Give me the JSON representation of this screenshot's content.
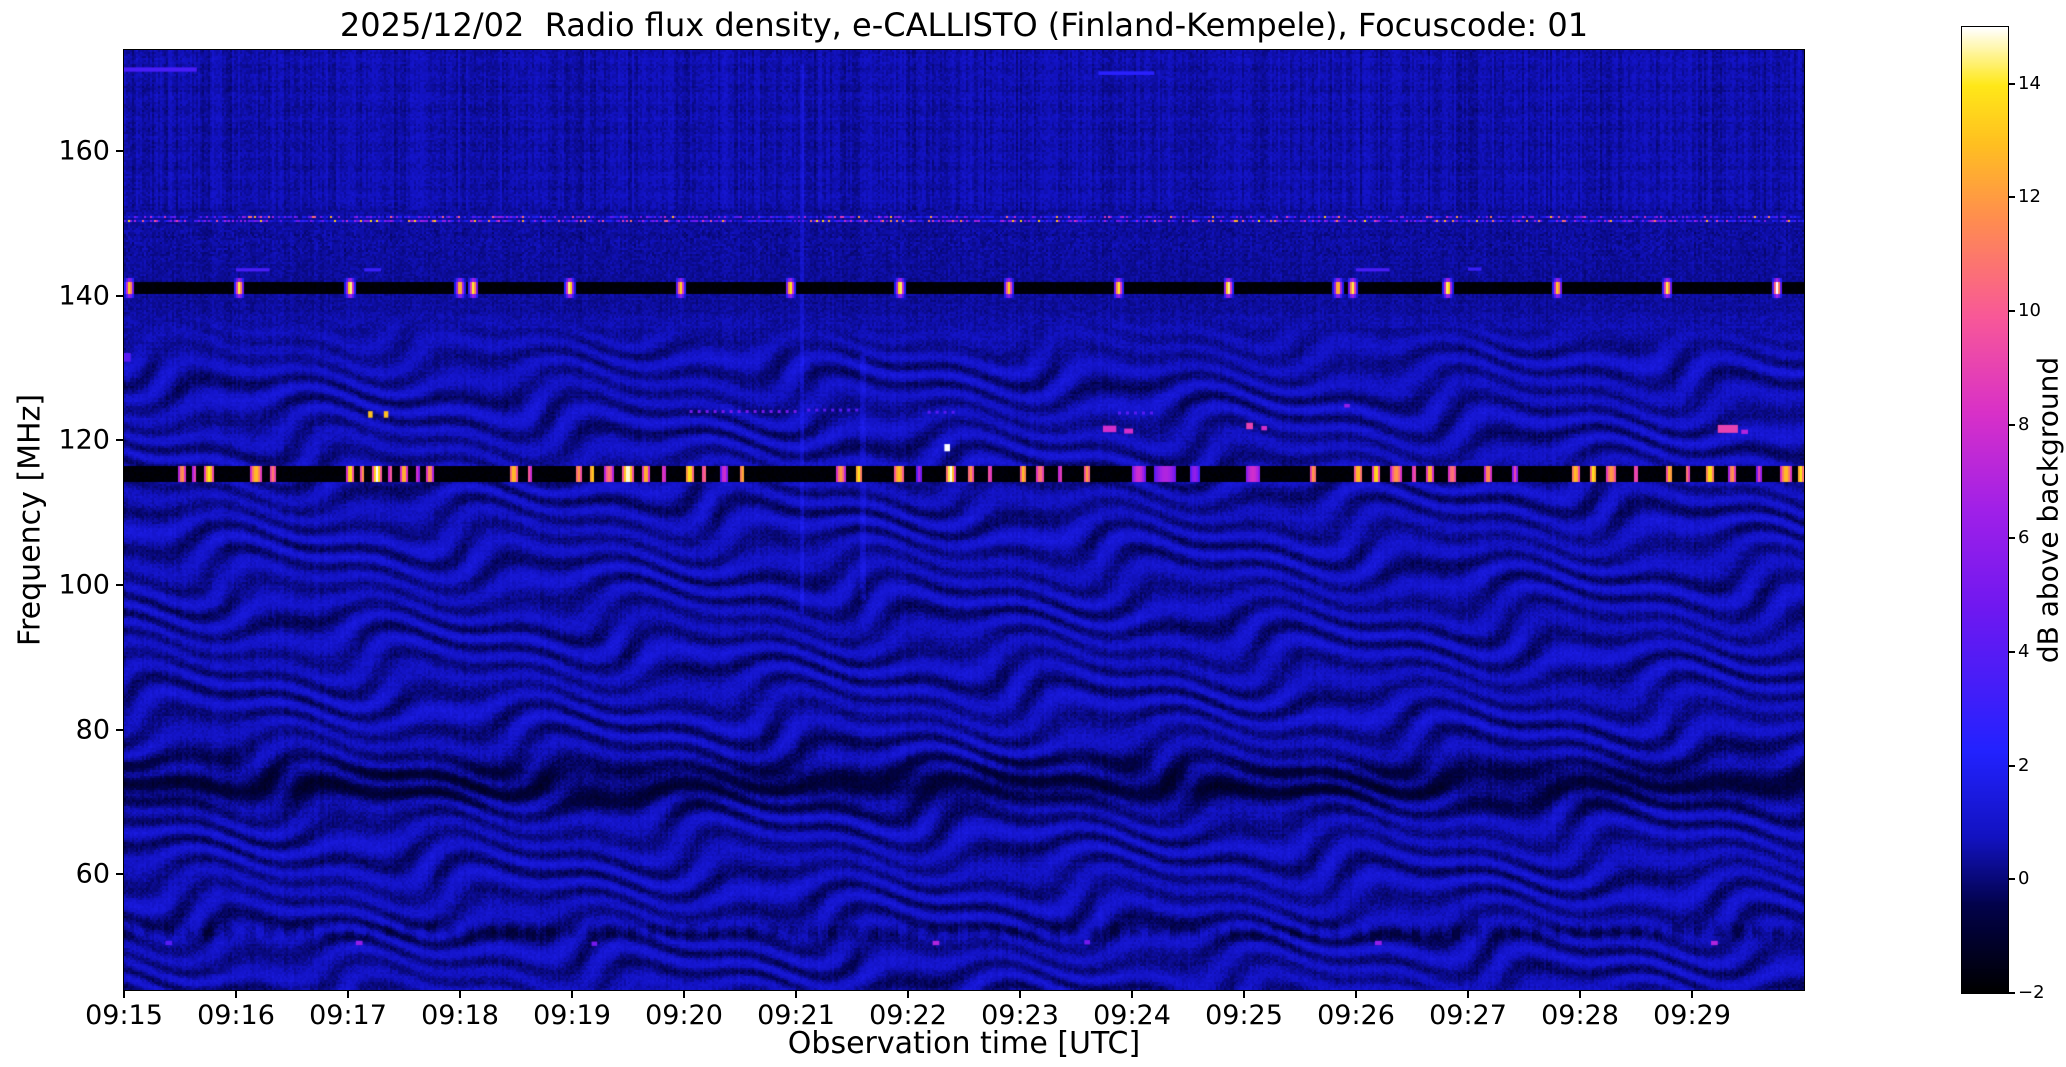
{
  "chart_data": {
    "type": "heatmap",
    "title": "2025/12/02  Radio flux density, e-CALLISTO (Finland-Kempele), Focuscode: 01",
    "xlabel": "Observation time [UTC]",
    "ylabel": "Frequency [MHz]",
    "x_start": "09:15",
    "x_end": "09:30",
    "x_minutes": 15,
    "x_ticks": [
      "09:15",
      "09:16",
      "09:17",
      "09:18",
      "09:19",
      "09:20",
      "09:21",
      "09:22",
      "09:23",
      "09:24",
      "09:25",
      "09:26",
      "09:27",
      "09:28",
      "09:29"
    ],
    "y_ticks": [
      160,
      140,
      120,
      100,
      80,
      60
    ],
    "freq_range": [
      44,
      174
    ],
    "colorbar": {
      "label": "dB above background",
      "ticks": [
        -2,
        0,
        2,
        4,
        6,
        8,
        10,
        12,
        14
      ],
      "range": [
        -2,
        15
      ]
    },
    "colormap": {
      "name": "gnuplot2-like",
      "stops": [
        [
          0.0,
          "#000000"
        ],
        [
          0.09,
          "#02024a"
        ],
        [
          0.16,
          "#1212c0"
        ],
        [
          0.25,
          "#2222ff"
        ],
        [
          0.4,
          "#7018f0"
        ],
        [
          0.5,
          "#a020e8"
        ],
        [
          0.6,
          "#d830c8"
        ],
        [
          0.7,
          "#f85898"
        ],
        [
          0.8,
          "#ff8c50"
        ],
        [
          0.88,
          "#ffc020"
        ],
        [
          0.94,
          "#ffe818"
        ],
        [
          1.0,
          "#ffffff"
        ]
      ]
    },
    "background_level_db": 0.5,
    "features": {
      "beacon_line": {
        "freq_mhz": 141,
        "width_mhz": 1.5,
        "level_db": -2,
        "pulse_peak_db": 14.5,
        "pulse_times_min": [
          0.05,
          1.03,
          2.02,
          3.0,
          3.12,
          3.98,
          4.97,
          5.95,
          6.93,
          7.9,
          8.88,
          9.86,
          10.84,
          10.97,
          11.82,
          12.8,
          13.78,
          14.76
        ]
      },
      "airband_line": {
        "freq_mhz": 115.3,
        "width_mhz": 2.2,
        "level_db": -2,
        "blips": [
          [
            0.52,
            0.03,
            12
          ],
          [
            0.63,
            0.02,
            9
          ],
          [
            0.76,
            0.04,
            14
          ],
          [
            1.18,
            0.05,
            13
          ],
          [
            1.33,
            0.03,
            11
          ],
          [
            2.02,
            0.03,
            14
          ],
          [
            2.13,
            0.02,
            12
          ],
          [
            2.26,
            0.04,
            15
          ],
          [
            2.38,
            0.02,
            10
          ],
          [
            2.5,
            0.03,
            13
          ],
          [
            2.62,
            0.02,
            8
          ],
          [
            2.73,
            0.03,
            12
          ],
          [
            3.48,
            0.04,
            13
          ],
          [
            3.62,
            0.02,
            10
          ],
          [
            4.06,
            0.03,
            12
          ],
          [
            4.18,
            0.02,
            14
          ],
          [
            4.33,
            0.04,
            11
          ],
          [
            4.5,
            0.05,
            15
          ],
          [
            4.66,
            0.03,
            13
          ],
          [
            4.82,
            0.02,
            9
          ],
          [
            5.05,
            0.04,
            14
          ],
          [
            5.18,
            0.02,
            11
          ],
          [
            5.36,
            0.03,
            8
          ],
          [
            5.52,
            0.02,
            13
          ],
          [
            6.4,
            0.04,
            12
          ],
          [
            6.56,
            0.03,
            14
          ],
          [
            6.92,
            0.05,
            13
          ],
          [
            7.1,
            0.02,
            7
          ],
          [
            7.38,
            0.04,
            15
          ],
          [
            7.56,
            0.03,
            12
          ],
          [
            7.73,
            0.02,
            10
          ],
          [
            8.03,
            0.03,
            13
          ],
          [
            8.18,
            0.04,
            11
          ],
          [
            8.36,
            0.02,
            9
          ],
          [
            8.6,
            0.03,
            12
          ],
          [
            9.06,
            0.06,
            8
          ],
          [
            9.3,
            0.1,
            7
          ],
          [
            9.56,
            0.04,
            6
          ],
          [
            10.08,
            0.07,
            8
          ],
          [
            10.62,
            0.03,
            12
          ],
          [
            11.02,
            0.04,
            13
          ],
          [
            11.18,
            0.03,
            14
          ],
          [
            11.36,
            0.05,
            12
          ],
          [
            11.52,
            0.02,
            10
          ],
          [
            11.66,
            0.03,
            13
          ],
          [
            11.86,
            0.04,
            11
          ],
          [
            12.18,
            0.03,
            12
          ],
          [
            12.42,
            0.02,
            9
          ],
          [
            12.96,
            0.04,
            13
          ],
          [
            13.12,
            0.03,
            14
          ],
          [
            13.28,
            0.05,
            12
          ],
          [
            13.5,
            0.02,
            10
          ],
          [
            13.8,
            0.03,
            13
          ],
          [
            13.96,
            0.02,
            11
          ],
          [
            14.16,
            0.04,
            14
          ],
          [
            14.36,
            0.03,
            12
          ],
          [
            14.6,
            0.02,
            9
          ],
          [
            14.84,
            0.05,
            13
          ],
          [
            14.97,
            0.03,
            14
          ]
        ]
      },
      "speckle_line": {
        "freq_mhz": 150.5,
        "width_mhz": 0.9
      },
      "events": [
        {
          "t": 0.03,
          "f": 131.5,
          "w": 0.06,
          "h": 1.2,
          "v": 4
        },
        {
          "t": 2.2,
          "f": 123.6,
          "w": 0.04,
          "h": 0.9,
          "v": 13
        },
        {
          "t": 2.34,
          "f": 123.6,
          "w": 0.04,
          "h": 0.9,
          "v": 13
        },
        {
          "t": 5.55,
          "f": 124.0,
          "w": 1.0,
          "h": 0.4,
          "v": 5,
          "type": "dots"
        },
        {
          "t": 6.35,
          "f": 124.2,
          "w": 0.5,
          "h": 0.4,
          "v": 4,
          "type": "dots"
        },
        {
          "t": 7.3,
          "f": 123.9,
          "w": 0.25,
          "h": 0.4,
          "v": 4,
          "type": "dots"
        },
        {
          "t": 7.35,
          "f": 119.0,
          "w": 0.05,
          "h": 1.0,
          "v": 15
        },
        {
          "t": 8.8,
          "f": 121.6,
          "w": 0.12,
          "h": 0.9,
          "v": 8
        },
        {
          "t": 8.97,
          "f": 121.3,
          "w": 0.08,
          "h": 0.7,
          "v": 8
        },
        {
          "t": 9.05,
          "f": 123.8,
          "w": 0.35,
          "h": 0.4,
          "v": 4,
          "type": "dots"
        },
        {
          "t": 10.05,
          "f": 122.0,
          "w": 0.06,
          "h": 0.9,
          "v": 9
        },
        {
          "t": 10.18,
          "f": 121.7,
          "w": 0.05,
          "h": 0.6,
          "v": 8
        },
        {
          "t": 10.92,
          "f": 124.8,
          "w": 0.05,
          "h": 0.5,
          "v": 6
        },
        {
          "t": 14.32,
          "f": 121.6,
          "w": 0.18,
          "h": 1.1,
          "v": 9
        },
        {
          "t": 14.47,
          "f": 121.2,
          "w": 0.06,
          "h": 0.6,
          "v": 7
        },
        {
          "t": 1.15,
          "f": 143.6,
          "w": 0.3,
          "h": 0.45,
          "v": 3.5
        },
        {
          "t": 2.22,
          "f": 143.6,
          "w": 0.15,
          "h": 0.45,
          "v": 3
        },
        {
          "t": 11.15,
          "f": 143.6,
          "w": 0.3,
          "h": 0.45,
          "v": 3.5
        },
        {
          "t": 12.06,
          "f": 143.7,
          "w": 0.12,
          "h": 0.45,
          "v": 3
        },
        {
          "t": 0.3,
          "f": 171.3,
          "w": 0.7,
          "h": 0.6,
          "v": 3.5
        },
        {
          "t": 8.95,
          "f": 170.8,
          "w": 0.5,
          "h": 0.5,
          "v": 2.5
        },
        {
          "t": 0.4,
          "f": 50.5,
          "w": 0.06,
          "h": 0.6,
          "v": 4
        },
        {
          "t": 2.1,
          "f": 50.5,
          "w": 0.06,
          "h": 0.6,
          "v": 6
        },
        {
          "t": 4.2,
          "f": 50.4,
          "w": 0.05,
          "h": 0.6,
          "v": 5
        },
        {
          "t": 7.25,
          "f": 50.5,
          "w": 0.06,
          "h": 0.6,
          "v": 7
        },
        {
          "t": 8.6,
          "f": 50.6,
          "w": 0.05,
          "h": 0.6,
          "v": 5
        },
        {
          "t": 11.2,
          "f": 50.5,
          "w": 0.06,
          "h": 0.6,
          "v": 6
        },
        {
          "t": 14.2,
          "f": 50.5,
          "w": 0.06,
          "h": 0.6,
          "v": 7
        }
      ],
      "vertical_streaks": [
        {
          "t_min": 6.05,
          "f0": 96,
          "f1": 172,
          "dv_db": 0.7
        },
        {
          "t_min": 6.6,
          "f0": 98,
          "f1": 132,
          "dv_db": 0.5
        }
      ],
      "ripple": {
        "wavelength_mhz": 3.55,
        "max_freq_mhz": 137.5,
        "amplitude_db": 0.55,
        "wobble_period_min": 2.7,
        "wobble_amplitude_mhz": 2.0
      },
      "dark_band": {
        "freq_mhz": 72.5,
        "depth_db": 0.95,
        "sigma_mhz": 2.2
      },
      "dashed_line": {
        "freq_mhz": 52,
        "depth_db": 0.65
      }
    }
  }
}
